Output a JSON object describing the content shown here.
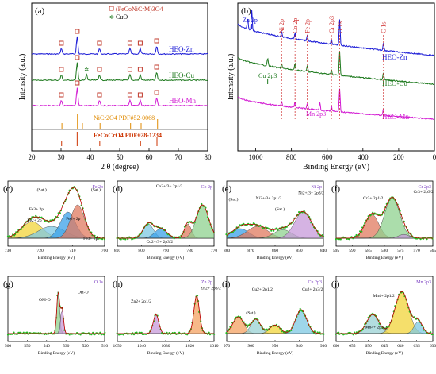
{
  "colors": {
    "zn": "#1a1ad6",
    "cu": "#1f7a1f",
    "mn": "#d21bd2",
    "ref": "#cc3300",
    "refline": "#e08a00",
    "marker": "#c0392b",
    "peak_text": "#ffffff"
  },
  "chart_data": [
    {
      "panel": "(a)",
      "type": "line",
      "xlabel": "2 θ (degree)",
      "ylabel": "Intensity (a.u.)",
      "xlim": [
        20,
        80
      ],
      "xticks": [
        "20",
        "30",
        "40",
        "50",
        "60",
        "70",
        "80"
      ],
      "legend": {
        "square": "(FeCoNiCrM)3O4",
        "star": "CuO"
      },
      "series": [
        {
          "name": "HEO-Zn",
          "peaks": [
            30.1,
            35.5,
            43.1,
            53.5,
            57.0,
            62.6
          ]
        },
        {
          "name": "HEO-Cu",
          "peaks": [
            30.1,
            35.5,
            38.7,
            43.1,
            53.5,
            57.0,
            62.6
          ]
        },
        {
          "name": "HEO-Mn",
          "peaks": [
            30.1,
            35.5,
            43.1,
            53.5,
            57.0,
            62.6
          ]
        }
      ],
      "references": [
        {
          "label": "NiCr2O4 PDF#52-0068",
          "lines": [
            30.3,
            35.6,
            37.3,
            43.3,
            53.7,
            57.3,
            62.9
          ]
        },
        {
          "label": "FeCoCrO4 PDF#28-1234",
          "lines": [
            30.2,
            35.5,
            43.2,
            57.1,
            62.7
          ]
        }
      ]
    },
    {
      "panel": "(b)",
      "type": "line",
      "xlabel": "Binding Energy (eV)",
      "ylabel": "Intensity (a.u.)",
      "xlim": [
        1100,
        0
      ],
      "reversed": true,
      "xticks": [
        "1000",
        "800",
        "600",
        "400",
        "200",
        "0"
      ],
      "peak_labels": [
        "Zn 2p",
        "Ni 2p",
        "Co 2p",
        "Fe 2p",
        "Cr 2p3",
        "O 1s",
        "C 1s",
        "Cu 2p3",
        "Mn 2p3"
      ],
      "series": [
        {
          "name": "HEO-Zn"
        },
        {
          "name": "HEO-Cu"
        },
        {
          "name": "HEO-Mn"
        }
      ]
    },
    {
      "panel": "(c)",
      "title": "Fe 2p",
      "xlabel": "Binding Energy (eV)",
      "xticks": [
        "730",
        "720",
        "710",
        "700"
      ],
      "labels": [
        "(Sat.)",
        "(Sat.)",
        "Fe3+ 2p",
        "Fe2+ 2p",
        "Fe2+ 2p",
        "Fe3+ 2p"
      ]
    },
    {
      "panel": "(d)",
      "title": "Co 2p",
      "xlabel": "Binding Energy (eV)",
      "xticks": [
        "810",
        "800",
        "790",
        "780",
        "770"
      ],
      "labels": [
        "Co2+/3+ 2p1/2",
        "Co2+/3+ 2p3/2"
      ]
    },
    {
      "panel": "(e)",
      "title": "Ni 2p",
      "xlabel": "Binding Energy (eV)",
      "xticks": [
        "880",
        "870",
        "860",
        "850",
        "840"
      ],
      "labels": [
        "(Sat.)",
        "Ni2+/3+ 2p1/2",
        "(Sat.)",
        "Ni2+/3+ 2p3/2"
      ]
    },
    {
      "panel": "(f)",
      "title": "Cr 2p3",
      "xlabel": "Binding Energy (eV)",
      "xticks": [
        "595",
        "590",
        "585",
        "580",
        "575",
        "570",
        "565"
      ],
      "labels": [
        "Cr3+ 2p1/2",
        "Cr3+ 2p3/2"
      ]
    },
    {
      "panel": "(g)",
      "title": "O 1s",
      "xlabel": "Binding Energy (eV)",
      "xticks": [
        "560",
        "550",
        "540",
        "530",
        "520",
        "510"
      ],
      "labels": [
        "OM-O",
        "OH-O"
      ]
    },
    {
      "panel": "(h)",
      "title": "Zn 2p",
      "xlabel": "Binding Energy (eV)",
      "xticks": [
        "1050",
        "1040",
        "1030",
        "1020",
        "1010"
      ],
      "labels": [
        "Zn2+ 2p1/2",
        "Zn2+ 2p3/2"
      ]
    },
    {
      "panel": "(i)",
      "title": "Cu 2p3",
      "xlabel": "Binding Energy (eV)",
      "xticks": [
        "970",
        "960",
        "950",
        "940",
        "930"
      ],
      "labels": [
        "Cu2+ 2p1/2",
        "(Sat.)",
        "Cu2+ 2p3/2"
      ]
    },
    {
      "panel": "(j)",
      "title": "Mn 2p3",
      "xlabel": "Binding Energy (eV)",
      "xticks": [
        "660",
        "655",
        "650",
        "645",
        "640",
        "635",
        "630"
      ],
      "labels": [
        "Mn4+ 2p1/2",
        "Mn4+ 2p3/2"
      ]
    }
  ]
}
